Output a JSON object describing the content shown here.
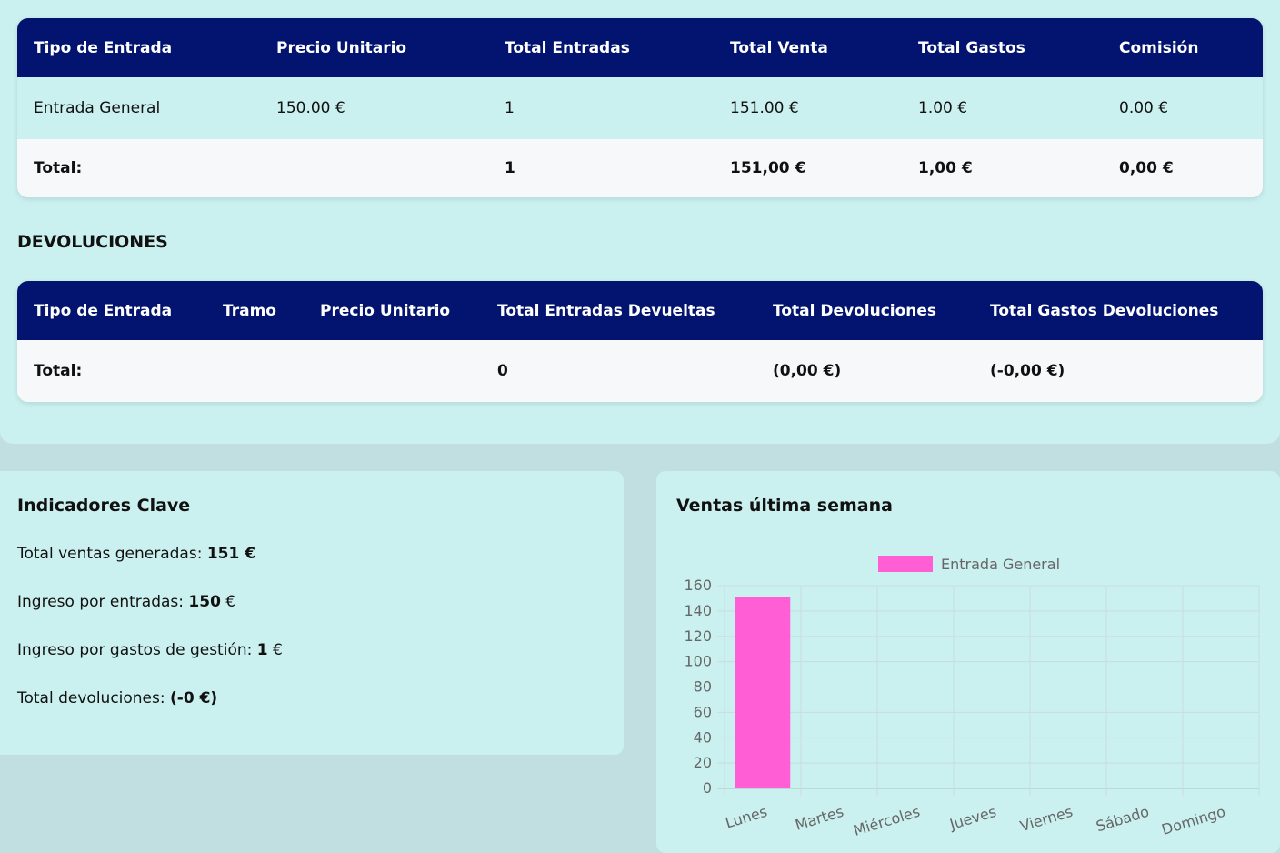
{
  "sales_table": {
    "headers": [
      "Tipo de Entrada",
      "Precio Unitario",
      "Total Entradas",
      "Total Venta",
      "Total Gastos",
      "Comisión"
    ],
    "rows": [
      [
        "Entrada General",
        "150.00 €",
        "1",
        "151.00 €",
        "1.00 €",
        "0.00 €"
      ]
    ],
    "total": [
      "Total:",
      "",
      "1",
      "151,00 €",
      "1,00 €",
      "0,00 €"
    ]
  },
  "returns": {
    "title": "DEVOLUCIONES",
    "headers": [
      "Tipo de Entrada",
      "Tramo",
      "Precio Unitario",
      "Total Entradas Devueltas",
      "Total Devoluciones",
      "Total Gastos Devoluciones"
    ],
    "total": [
      "Total:",
      "",
      "",
      "0",
      "(0,00 €)",
      "(-0,00 €)"
    ]
  },
  "kpis": {
    "title": "Indicadores Clave",
    "items": [
      {
        "label": "Total ventas generadas:",
        "value": "151 €",
        "value_bold": "151 €",
        "suffix": ""
      },
      {
        "label": "Ingreso por entradas:",
        "value_bold": "150",
        "suffix": " €"
      },
      {
        "label": "Ingreso por gastos de gestión:",
        "value_bold": "1",
        "suffix": " €"
      },
      {
        "label": "Total devoluciones:",
        "value_bold": "(-0 €)",
        "suffix": ""
      }
    ]
  },
  "weekly_chart": {
    "title": "Ventas última semana"
  },
  "chart_data": {
    "type": "bar",
    "categories": [
      "Lunes",
      "Martes",
      "Miércoles",
      "Jueves",
      "Viernes",
      "Sábado",
      "Domingo"
    ],
    "series": [
      {
        "name": "Entrada General",
        "values": [
          151,
          0,
          0,
          0,
          0,
          0,
          0
        ],
        "color": "#ff5ed5"
      }
    ],
    "ylim": [
      0,
      160
    ],
    "yticks": [
      0,
      20,
      40,
      60,
      80,
      100,
      120,
      140,
      160
    ],
    "grid": true,
    "legend": "top-center",
    "xlabel": "",
    "ylabel": ""
  },
  "colors": {
    "header_bg": "#02146f",
    "panel_bg": "#caf0ef",
    "page_bg": "#c1dfe0"
  }
}
